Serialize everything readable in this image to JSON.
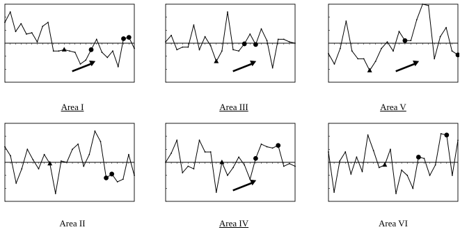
{
  "chart_data": [
    {
      "type": "line",
      "title": "Area I",
      "title_underlined": true,
      "arrow": true,
      "ylim": [
        -3,
        3
      ],
      "values": [
        1.6,
        2.4,
        0.9,
        1.5,
        0.7,
        0.8,
        0.1,
        1.3,
        1.6,
        -0.6,
        -0.6,
        -0.5,
        -0.6,
        -0.7,
        -1.6,
        -1.3,
        -0.5,
        0.3,
        -0.7,
        -1.1,
        -0.6,
        -1.8,
        0.35,
        0.45,
        -0.4
      ],
      "markers": [
        {
          "index": 11,
          "shape": "triangle"
        },
        {
          "index": 16,
          "shape": "circle"
        },
        {
          "index": 22,
          "shape": "circle"
        },
        {
          "index": 23,
          "shape": "circle"
        }
      ]
    },
    {
      "type": "line",
      "title": "Area III",
      "title_underlined": true,
      "arrow": true,
      "ylim": [
        -3,
        3
      ],
      "values": [
        0.1,
        0.6,
        -0.5,
        -0.3,
        -0.3,
        1.4,
        -0.5,
        0.5,
        -0.2,
        -1.4,
        -0.6,
        2.4,
        -0.5,
        -0.6,
        -0.05,
        0.7,
        -0.1,
        1.1,
        0.2,
        -1.9,
        0.3,
        0.3,
        0.1,
        0.0
      ],
      "markers": [
        {
          "index": 9,
          "shape": "triangle"
        },
        {
          "index": 14,
          "shape": "circle"
        },
        {
          "index": 16,
          "shape": "circle"
        }
      ]
    },
    {
      "type": "line",
      "title": "Area V",
      "title_underlined": true,
      "arrow": true,
      "ylim": [
        -3,
        3
      ],
      "values": [
        -0.8,
        -1.6,
        -0.4,
        1.7,
        -0.6,
        -1.2,
        -1.2,
        -2.1,
        -1.4,
        -0.4,
        0.1,
        -0.6,
        0.9,
        0.2,
        0.2,
        1.8,
        3.0,
        2.9,
        -1.2,
        0.5,
        1.2,
        -0.6,
        -0.9
      ],
      "markers": [
        {
          "index": 7,
          "shape": "triangle"
        },
        {
          "index": 13,
          "shape": "circle"
        },
        {
          "index": 22,
          "shape": "circle"
        }
      ]
    },
    {
      "type": "line",
      "title": "Area II",
      "title_underlined": false,
      "arrow": false,
      "ylim": [
        -3,
        3
      ],
      "values": [
        1.2,
        0.5,
        -1.6,
        -0.5,
        1.0,
        0.2,
        -0.5,
        0.6,
        -0.1,
        -2.4,
        0.1,
        0.0,
        1.0,
        1.4,
        -0.3,
        0.6,
        2.4,
        1.6,
        -1.2,
        -0.9,
        -1.5,
        -1.3,
        0.6,
        -1.0
      ],
      "markers": [
        {
          "index": 8,
          "shape": "triangle"
        },
        {
          "index": 18,
          "shape": "circle"
        },
        {
          "index": 19,
          "shape": "circle"
        }
      ]
    },
    {
      "type": "line",
      "title": "Area IV",
      "title_underlined": true,
      "arrow": true,
      "ylim": [
        -3,
        3
      ],
      "values": [
        0.0,
        0.7,
        1.7,
        -0.8,
        -0.3,
        -0.5,
        1.7,
        0.8,
        0.8,
        -2.3,
        0.0,
        -1.0,
        -0.4,
        0.4,
        -0.2,
        -1.3,
        0.3,
        1.4,
        1.2,
        1.1,
        1.3,
        -0.3,
        -0.1,
        -0.3
      ],
      "markers": [
        {
          "index": 10,
          "shape": "triangle"
        },
        {
          "index": 16,
          "shape": "circle"
        },
        {
          "index": 20,
          "shape": "circle"
        }
      ]
    },
    {
      "type": "line",
      "title": "Area VI",
      "title_underlined": false,
      "arrow": false,
      "ylim": [
        -3,
        3
      ],
      "values": [
        0.8,
        -2.3,
        0.1,
        0.8,
        -0.9,
        0.4,
        -0.7,
        2.1,
        0.9,
        -0.4,
        -0.2,
        1.0,
        -2.4,
        -0.6,
        -1.0,
        -2.0,
        0.4,
        0.3,
        -1.0,
        -0.2,
        2.2,
        2.1,
        -1.0,
        1.7
      ],
      "markers": [
        {
          "index": 10,
          "shape": "triangle"
        },
        {
          "index": 16,
          "shape": "circle"
        },
        {
          "index": 21,
          "shape": "circle"
        }
      ]
    }
  ]
}
